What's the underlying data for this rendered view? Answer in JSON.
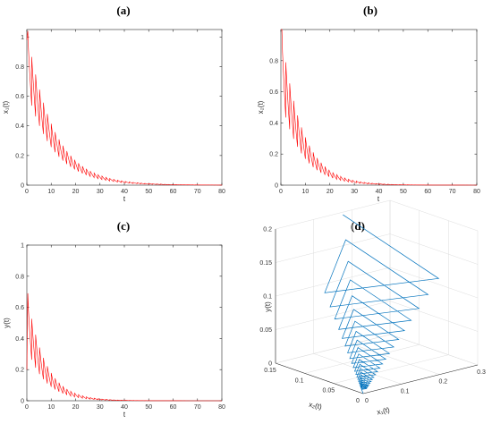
{
  "colors": {
    "series": "#ff0000",
    "phase": "#0072bd"
  },
  "chart_data": [
    {
      "id": "a",
      "panel_label": "(a)",
      "type": "line",
      "xlabel": "t",
      "ylabel": "x₁(t)",
      "xlim": [
        0,
        80
      ],
      "ylim": [
        0,
        1.05
      ],
      "xticks": [
        0,
        10,
        20,
        30,
        40,
        50,
        60,
        70,
        80
      ],
      "yticks": [
        0,
        0.2,
        0.4,
        0.6,
        0.8,
        1
      ],
      "grid": false,
      "series": [
        {
          "color": "#ff0000",
          "start": 0.98,
          "period": 1.6,
          "decay": 0.092,
          "drop": 0.38,
          "peak": 1.04,
          "t_end": 80
        }
      ]
    },
    {
      "id": "b",
      "panel_label": "(b)",
      "type": "line",
      "xlabel": "t",
      "ylabel": "x₂(t)",
      "xlim": [
        0,
        80
      ],
      "ylim": [
        0,
        1.0
      ],
      "xticks": [
        0,
        10,
        20,
        30,
        40,
        50,
        60,
        70,
        80
      ],
      "yticks": [
        0,
        0.2,
        0.4,
        0.6,
        0.8
      ],
      "grid": false,
      "series": [
        {
          "color": "#ff0000",
          "start": 1.0,
          "period": 1.6,
          "decay": 0.118,
          "drop": 0.45,
          "peak": 1.0,
          "t_end": 80
        }
      ]
    },
    {
      "id": "c",
      "panel_label": "(c)",
      "type": "line",
      "xlabel": "t",
      "ylabel": "y(t)",
      "xlim": [
        0,
        80
      ],
      "ylim": [
        0,
        1.0
      ],
      "xticks": [
        0,
        10,
        20,
        30,
        40,
        50,
        60,
        70,
        80
      ],
      "yticks": [
        0,
        0.2,
        0.4,
        0.6,
        0.8,
        1
      ],
      "grid": false,
      "series": [
        {
          "color": "#ff0000",
          "start": 0.2,
          "period": 1.6,
          "decay": 0.135,
          "drop": 0.5,
          "peak": 0.69,
          "t_end": 80
        }
      ]
    },
    {
      "id": "d",
      "panel_label": "(d)",
      "type": "line3d",
      "xlabel": "x₁(t)",
      "ylabel": "x₂(t)",
      "zlabel": "y(t)",
      "x1lim": [
        0,
        0.3
      ],
      "x2lim": [
        0,
        0.15
      ],
      "zlim": [
        0,
        0.2
      ],
      "x1ticks": [
        0,
        0.1,
        0.2,
        0.3
      ],
      "x2ticks": [
        0,
        0.05,
        0.1,
        0.15
      ],
      "zticks": [
        0,
        0.05,
        0.1,
        0.15,
        0.2
      ],
      "grid": true,
      "series": [
        {
          "color": "#0072bd",
          "start": [
            0.3,
            0.15,
            0.2
          ],
          "turns": 22,
          "decay": 0.86
        }
      ]
    }
  ]
}
